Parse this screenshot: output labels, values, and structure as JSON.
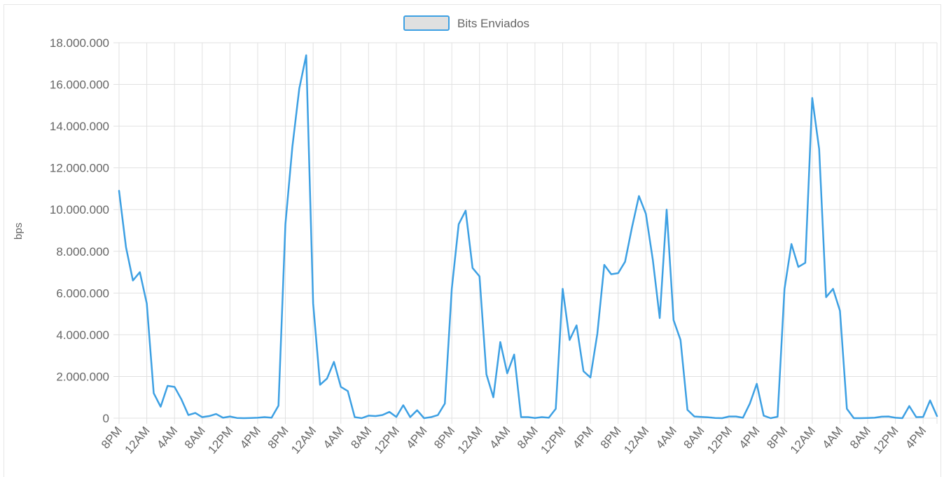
{
  "chart_data": {
    "type": "line",
    "legend": {
      "position": "top",
      "color": "#3da0e3",
      "fill": "#e0e0e0"
    },
    "ylabel": "bps",
    "ylim": [
      0,
      18000000
    ],
    "yticks": [
      "0",
      "2.000.000",
      "4.000.000",
      "6.000.000",
      "8.000.000",
      "10.000.000",
      "12.000.000",
      "14.000.000",
      "16.000.000",
      "18.000.000"
    ],
    "xticks": [
      "8PM",
      "12AM",
      "4AM",
      "8AM",
      "12PM",
      "4PM",
      "8PM",
      "12AM",
      "4AM",
      "8AM",
      "12PM",
      "4PM",
      "8PM",
      "12AM",
      "4AM",
      "8AM",
      "12PM",
      "4PM",
      "8PM",
      "12AM",
      "4AM",
      "8AM",
      "12PM",
      "4PM",
      "8PM",
      "12AM",
      "4AM",
      "8AM",
      "12PM",
      "4PM"
    ],
    "grid": true,
    "series": [
      {
        "name": "Bits Enviados",
        "color": "#3da0e3",
        "values": [
          10900000,
          8200000,
          6600000,
          7000000,
          5500000,
          1200000,
          550000,
          1550000,
          1500000,
          900000,
          150000,
          250000,
          50000,
          100000,
          200000,
          20000,
          80000,
          10000,
          0,
          10000,
          20000,
          50000,
          20000,
          600000,
          9300000,
          13000000,
          15800000,
          17400000,
          5500000,
          1600000,
          1900000,
          2700000,
          1500000,
          1300000,
          50000,
          0,
          120000,
          100000,
          150000,
          300000,
          60000,
          620000,
          50000,
          380000,
          0,
          50000,
          150000,
          700000,
          6200000,
          9300000,
          9950000,
          7200000,
          6800000,
          2100000,
          1000000,
          3650000,
          2150000,
          3050000,
          50000,
          50000,
          10000,
          50000,
          20000,
          450000,
          6200000,
          3750000,
          4450000,
          2250000,
          1950000,
          4050000,
          7350000,
          6900000,
          6950000,
          7500000,
          9150000,
          10650000,
          9800000,
          7600000,
          4800000,
          10000000,
          4700000,
          3750000,
          400000,
          80000,
          60000,
          40000,
          10000,
          0,
          80000,
          80000,
          20000,
          700000,
          1650000,
          120000,
          0,
          70000,
          6200000,
          8350000,
          7250000,
          7450000,
          15350000,
          12900000,
          5800000,
          6200000,
          5150000,
          450000,
          0,
          0,
          10000,
          20000,
          70000,
          80000,
          20000,
          0,
          580000,
          50000,
          60000,
          850000,
          100000
        ]
      }
    ]
  }
}
